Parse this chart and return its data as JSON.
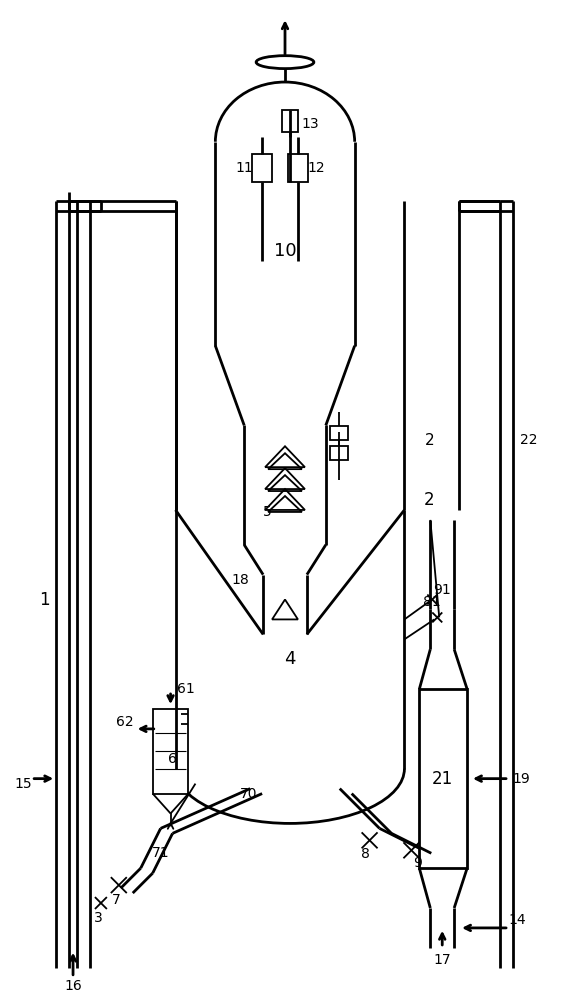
{
  "bg_color": "#ffffff",
  "line_color": "#000000",
  "lw": 2.0,
  "tlw": 1.3,
  "fs": 10,
  "fig_width": 5.72,
  "fig_height": 10.0,
  "dpi": 100
}
